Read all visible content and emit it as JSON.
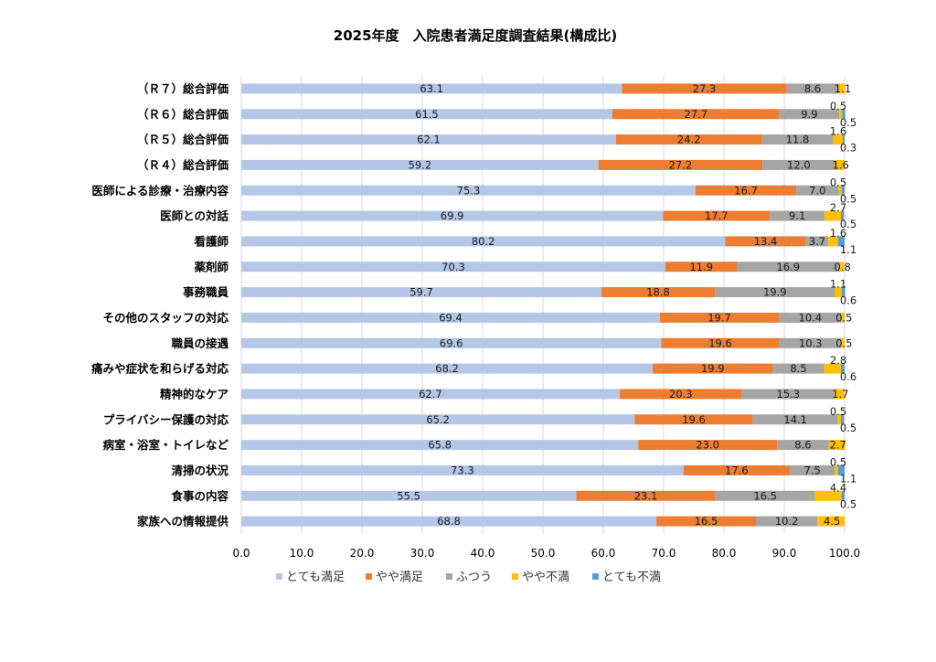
{
  "chart_data": {
    "type": "bar",
    "orientation": "horizontal",
    "stacked": true,
    "title": "2025年度　入院患者満足度調査結果(構成比)",
    "categories": [
      "（Ｒ７）総合評価",
      "（Ｒ６）総合評価",
      "（Ｒ５）総合評価",
      "（Ｒ４）総合評価",
      "医師による診療・治療内容",
      "医師との対話",
      "看護師",
      "薬剤師",
      "事務職員",
      "その他のスタッフの対応",
      "職員の接遇",
      "痛みや症状を和らげる対応",
      "精神的なケア",
      "プライバシー保護の対応",
      "病室・浴室・トイレなど",
      "清掃の状況",
      "食事の内容",
      "家族への情報提供"
    ],
    "series": [
      {
        "name": "とても満足",
        "color": "#b4c7e7",
        "values": [
          63.1,
          61.5,
          62.1,
          59.2,
          75.3,
          69.9,
          80.2,
          70.3,
          59.7,
          69.4,
          69.6,
          68.2,
          62.7,
          65.2,
          65.8,
          73.3,
          55.5,
          68.8
        ]
      },
      {
        "name": "やや満足",
        "color": "#ed7d31",
        "values": [
          27.3,
          27.7,
          24.2,
          27.2,
          16.7,
          17.7,
          13.4,
          11.9,
          18.8,
          19.7,
          19.6,
          19.9,
          20.3,
          19.6,
          23.0,
          17.6,
          23.1,
          16.5
        ]
      },
      {
        "name": "ふつう",
        "color": "#a5a5a5",
        "values": [
          8.6,
          9.9,
          11.8,
          12.0,
          7.0,
          9.1,
          3.7,
          16.9,
          19.9,
          10.4,
          10.3,
          8.5,
          15.3,
          14.1,
          8.6,
          7.5,
          16.5,
          10.2
        ]
      },
      {
        "name": "やや不満",
        "color": "#ffc000",
        "values": [
          1.1,
          0.5,
          1.6,
          1.6,
          0.5,
          2.7,
          1.6,
          0.8,
          1.1,
          0.5,
          0.5,
          2.8,
          1.7,
          0.5,
          2.7,
          0.5,
          4.4,
          4.5
        ]
      },
      {
        "name": "とても不満",
        "color": "#5b9bd5",
        "values": [
          0.0,
          0.5,
          0.3,
          0.0,
          0.5,
          0.5,
          1.1,
          0.0,
          0.6,
          0.0,
          0.0,
          0.6,
          0.0,
          0.5,
          0.0,
          1.1,
          0.5,
          0.0
        ]
      }
    ],
    "xlim": [
      0,
      100
    ],
    "xticks": [
      "0.0",
      "10.0",
      "20.0",
      "30.0",
      "40.0",
      "50.0",
      "60.0",
      "70.0",
      "80.0",
      "90.0",
      "100.0"
    ],
    "grid": "vertical",
    "legend": "bottom"
  }
}
